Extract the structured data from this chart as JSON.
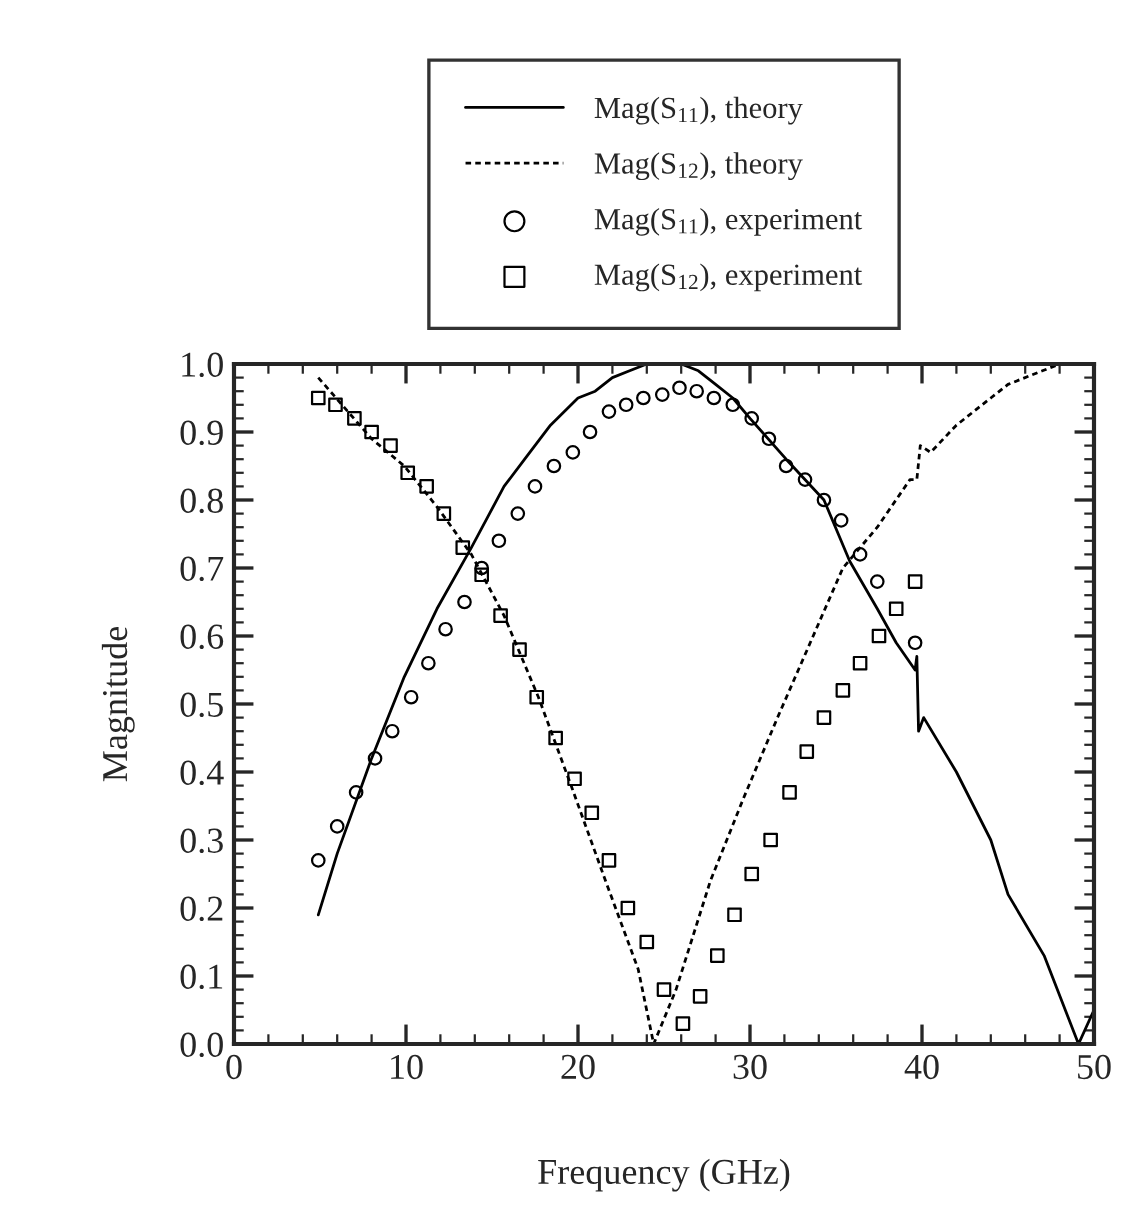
{
  "chart_data": {
    "type": "line",
    "xlabel": "Frequency (GHz)",
    "ylabel": "Magnitude",
    "xlim": [
      0,
      50
    ],
    "ylim": [
      0,
      1
    ],
    "xticks": [
      0,
      10,
      20,
      30,
      40,
      50
    ],
    "yticks": [
      {
        "value": 0,
        "label": "0.0"
      },
      {
        "value": 0.1,
        "label": "0.1"
      },
      {
        "value": 0.2,
        "label": "0.2"
      },
      {
        "value": 0.3,
        "label": "0.3"
      },
      {
        "value": 0.4,
        "label": "0.4"
      },
      {
        "value": 0.5,
        "label": "0.5"
      },
      {
        "value": 0.6,
        "label": "0.6"
      },
      {
        "value": 0.7,
        "label": "0.7"
      },
      {
        "value": 0.8,
        "label": "0.8"
      },
      {
        "value": 0.9,
        "label": "0.9"
      },
      {
        "value": 1.0,
        "label": "1.0"
      }
    ],
    "grid": false,
    "legend": "top",
    "series": [
      {
        "name": "Mag(S$_{11}$), theory",
        "color": "#000000",
        "line_style": "solid",
        "marker": "none",
        "x": [
          4.9,
          6.0,
          8.0,
          9.9,
          11.8,
          13.8,
          15.7,
          16.9,
          18.4,
          20.0,
          21.0,
          22.0,
          23.0,
          24.0,
          25.0,
          26.0,
          27.0,
          28.0,
          29.0,
          30.0,
          32.1,
          34.3,
          35.8,
          37.4,
          38.5,
          39.6,
          39.7,
          39.8,
          40.1,
          42.0,
          44.0,
          45.0,
          47.1,
          49.1,
          50.0
        ],
        "values": [
          0.19,
          0.28,
          0.42,
          0.54,
          0.64,
          0.73,
          0.82,
          0.86,
          0.91,
          0.95,
          0.96,
          0.98,
          0.99,
          1.0,
          1.0,
          1.0,
          0.99,
          0.97,
          0.95,
          0.92,
          0.86,
          0.8,
          0.71,
          0.64,
          0.59,
          0.55,
          0.57,
          0.46,
          0.48,
          0.4,
          0.3,
          0.22,
          0.13,
          0.0,
          0.05
        ]
      },
      {
        "name": "Mag(S$_{12}$), theory",
        "color": "#000000",
        "line_style": "dotted",
        "marker": "none",
        "x": [
          4.9,
          8.0,
          9.9,
          11.8,
          13.8,
          15.7,
          17.7,
          19.6,
          21.6,
          23.5,
          24.4,
          25.7,
          27.7,
          29.6,
          31.6,
          33.5,
          35.4,
          37.4,
          39.3,
          39.7,
          39.9,
          40.5,
          42.0,
          44.0,
          45.0,
          47.0,
          48.0,
          50.0
        ],
        "values": [
          0.98,
          0.89,
          0.85,
          0.79,
          0.72,
          0.63,
          0.51,
          0.38,
          0.24,
          0.11,
          0.0,
          0.08,
          0.24,
          0.36,
          0.48,
          0.59,
          0.7,
          0.76,
          0.83,
          0.83,
          0.88,
          0.87,
          0.91,
          0.95,
          0.97,
          0.99,
          1.0,
          1.0
        ]
      },
      {
        "name": "Mag(S$_{11}$), experiment",
        "type": "scatter",
        "color": "#000000",
        "marker": "circle",
        "x": [
          4.9,
          6.0,
          7.1,
          8.2,
          9.2,
          10.3,
          11.3,
          12.3,
          13.4,
          14.4,
          15.4,
          16.5,
          17.5,
          18.6,
          19.7,
          20.7,
          21.8,
          22.8,
          23.8,
          24.9,
          25.9,
          26.9,
          27.9,
          29.0,
          30.1,
          31.1,
          32.1,
          33.2,
          34.3,
          35.3,
          36.4,
          37.4,
          39.6
        ],
        "values": [
          0.27,
          0.32,
          0.37,
          0.42,
          0.46,
          0.51,
          0.56,
          0.61,
          0.65,
          0.7,
          0.74,
          0.78,
          0.82,
          0.85,
          0.87,
          0.9,
          0.93,
          0.94,
          0.95,
          0.955,
          0.965,
          0.96,
          0.95,
          0.94,
          0.92,
          0.89,
          0.85,
          0.83,
          0.8,
          0.77,
          0.72,
          0.68,
          0.59
        ]
      },
      {
        "name": "Mag(S$_{12}$), experiment",
        "type": "scatter",
        "color": "#000000",
        "marker": "square",
        "x": [
          4.9,
          5.9,
          7.0,
          8.0,
          9.1,
          10.1,
          11.2,
          12.2,
          13.3,
          14.4,
          15.5,
          16.6,
          17.6,
          18.7,
          19.8,
          20.8,
          21.8,
          22.9,
          24.0,
          25.0,
          26.1,
          27.1,
          28.1,
          29.1,
          30.1,
          31.2,
          32.3,
          33.3,
          34.3,
          35.4,
          36.4,
          37.5,
          38.5,
          39.6
        ],
        "values": [
          0.95,
          0.94,
          0.92,
          0.9,
          0.88,
          0.84,
          0.82,
          0.78,
          0.73,
          0.69,
          0.63,
          0.58,
          0.51,
          0.45,
          0.39,
          0.34,
          0.27,
          0.2,
          0.15,
          0.08,
          0.03,
          0.07,
          0.13,
          0.19,
          0.25,
          0.3,
          0.37,
          0.43,
          0.48,
          0.52,
          0.56,
          0.6,
          0.64,
          0.68
        ]
      }
    ]
  }
}
